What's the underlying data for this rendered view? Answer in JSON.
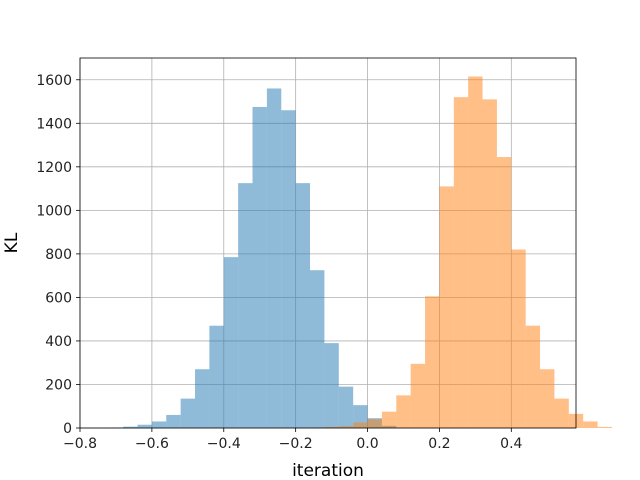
{
  "chart_data": {
    "type": "bar",
    "title": "",
    "xlabel": "iteration",
    "ylabel": "KL",
    "xlim": [
      -0.8,
      0.58
    ],
    "ylim": [
      0,
      1700
    ],
    "grid": true,
    "xticks": [
      -0.8,
      -0.6,
      -0.4,
      -0.2,
      0.0,
      0.2,
      0.4
    ],
    "xtick_labels": [
      "−0.8",
      "−0.6",
      "−0.4",
      "−0.2",
      "0.0",
      "0.2",
      "0.4"
    ],
    "yticks": [
      0,
      200,
      400,
      600,
      800,
      1000,
      1200,
      1400,
      1600
    ],
    "ytick_labels": [
      "0",
      "200",
      "400",
      "600",
      "800",
      "1000",
      "1200",
      "1400",
      "1600"
    ],
    "series": [
      {
        "color": "#1f77b4",
        "alpha": 0.5,
        "bins": [
          {
            "x0": -0.762,
            "x1": -0.72,
            "value": 1
          },
          {
            "x0": -0.72,
            "x1": -0.68,
            "value": 2
          },
          {
            "x0": -0.68,
            "x1": -0.64,
            "value": 6
          },
          {
            "x0": -0.64,
            "x1": -0.6,
            "value": 15
          },
          {
            "x0": -0.6,
            "x1": -0.56,
            "value": 30
          },
          {
            "x0": -0.56,
            "x1": -0.52,
            "value": 60
          },
          {
            "x0": -0.52,
            "x1": -0.48,
            "value": 135
          },
          {
            "x0": -0.48,
            "x1": -0.44,
            "value": 270
          },
          {
            "x0": -0.44,
            "x1": -0.4,
            "value": 470
          },
          {
            "x0": -0.4,
            "x1": -0.36,
            "value": 785
          },
          {
            "x0": -0.36,
            "x1": -0.32,
            "value": 1125
          },
          {
            "x0": -0.32,
            "x1": -0.28,
            "value": 1475
          },
          {
            "x0": -0.28,
            "x1": -0.24,
            "value": 1560
          },
          {
            "x0": -0.24,
            "x1": -0.2,
            "value": 1460
          },
          {
            "x0": -0.2,
            "x1": -0.16,
            "value": 1125
          },
          {
            "x0": -0.16,
            "x1": -0.12,
            "value": 725
          },
          {
            "x0": -0.12,
            "x1": -0.08,
            "value": 390
          },
          {
            "x0": -0.08,
            "x1": -0.04,
            "value": 190
          },
          {
            "x0": -0.04,
            "x1": 0.0,
            "value": 105
          },
          {
            "x0": 0.0,
            "x1": 0.04,
            "value": 45
          },
          {
            "x0": 0.04,
            "x1": 0.08,
            "value": 10
          }
        ]
      },
      {
        "color": "#ff7f0e",
        "alpha": 0.5,
        "bins": [
          {
            "x0": -0.16,
            "x1": -0.12,
            "value": 1
          },
          {
            "x0": -0.12,
            "x1": -0.08,
            "value": 5
          },
          {
            "x0": -0.08,
            "x1": -0.04,
            "value": 8
          },
          {
            "x0": -0.04,
            "x1": 0.0,
            "value": 25
          },
          {
            "x0": 0.0,
            "x1": 0.04,
            "value": 40
          },
          {
            "x0": 0.04,
            "x1": 0.08,
            "value": 75
          },
          {
            "x0": 0.08,
            "x1": 0.12,
            "value": 150
          },
          {
            "x0": 0.12,
            "x1": 0.16,
            "value": 295
          },
          {
            "x0": 0.16,
            "x1": 0.2,
            "value": 605
          },
          {
            "x0": 0.2,
            "x1": 0.24,
            "value": 1110
          },
          {
            "x0": 0.24,
            "x1": 0.28,
            "value": 1520
          },
          {
            "x0": 0.28,
            "x1": 0.32,
            "value": 1615
          },
          {
            "x0": 0.32,
            "x1": 0.36,
            "value": 1510
          },
          {
            "x0": 0.36,
            "x1": 0.4,
            "value": 1245
          },
          {
            "x0": 0.4,
            "x1": 0.44,
            "value": 820
          },
          {
            "x0": 0.44,
            "x1": 0.48,
            "value": 470
          },
          {
            "x0": 0.48,
            "x1": 0.52,
            "value": 270
          },
          {
            "x0": 0.52,
            "x1": 0.56,
            "value": 135
          },
          {
            "x0": 0.56,
            "x1": 0.6,
            "value": 65
          },
          {
            "x0": 0.6,
            "x1": 0.64,
            "value": 30
          },
          {
            "x0": 0.64,
            "x1": 0.68,
            "value": 5
          }
        ]
      }
    ]
  }
}
